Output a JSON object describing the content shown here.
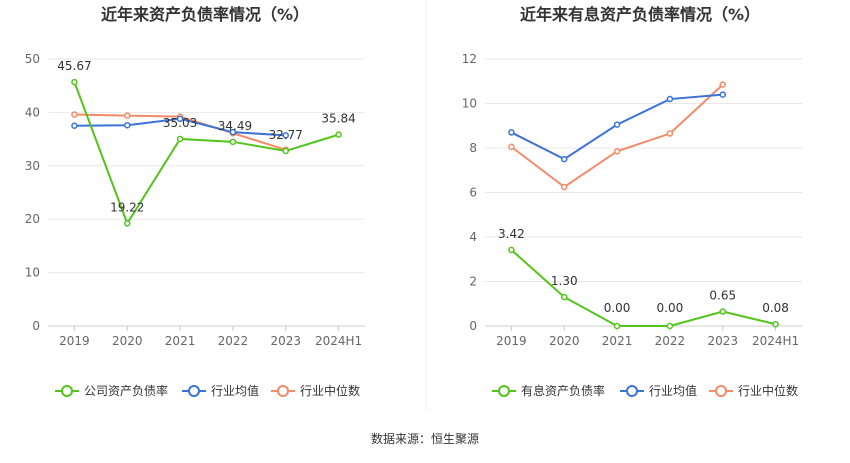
{
  "colors": {
    "company": "#52c41a",
    "avg": "#3b73d9",
    "median": "#f28b67"
  },
  "footer": {
    "source": "数据来源：恒生聚源"
  },
  "chart_data": [
    {
      "type": "line",
      "title": "近年来资产负债率情况（%）",
      "categories": [
        "2019",
        "2020",
        "2021",
        "2022",
        "2023",
        "2024H1"
      ],
      "ylim": [
        0,
        50
      ],
      "yticks": [
        0,
        10,
        20,
        30,
        40,
        50
      ],
      "grid": true,
      "legend_placement": "bottom",
      "series": [
        {
          "name": "公司资产负债率",
          "role": "company",
          "values": [
            45.67,
            19.22,
            35.03,
            34.49,
            32.77,
            35.84
          ],
          "labels": [
            "45.67",
            "19.22",
            "35.03",
            "34.49",
            "32.77",
            "35.84"
          ]
        },
        {
          "name": "行业均值",
          "role": "avg",
          "values": [
            37.5,
            37.6,
            38.8,
            36.3,
            35.7,
            null
          ]
        },
        {
          "name": "行业中位数",
          "role": "median",
          "values": [
            39.6,
            39.4,
            39.2,
            36.1,
            33.0,
            null
          ]
        }
      ]
    },
    {
      "type": "line",
      "title": "近年来有息资产负债率情况（%）",
      "categories": [
        "2019",
        "2020",
        "2021",
        "2022",
        "2023",
        "2024H1"
      ],
      "ylim": [
        0,
        12
      ],
      "yticks": [
        0,
        2,
        4,
        6,
        8,
        10,
        12
      ],
      "grid": true,
      "legend_placement": "bottom",
      "series": [
        {
          "name": "有息资产负债率",
          "role": "company",
          "values": [
            3.42,
            1.3,
            0.0,
            0.0,
            0.65,
            0.08
          ],
          "labels": [
            "3.42",
            "1.30",
            "0.00",
            "0.00",
            "0.65",
            "0.08"
          ]
        },
        {
          "name": "行业均值",
          "role": "avg",
          "values": [
            8.7,
            7.5,
            9.05,
            10.2,
            10.4,
            null
          ]
        },
        {
          "name": "行业中位数",
          "role": "median",
          "values": [
            8.05,
            6.25,
            7.85,
            8.65,
            10.85,
            null
          ]
        }
      ]
    }
  ]
}
